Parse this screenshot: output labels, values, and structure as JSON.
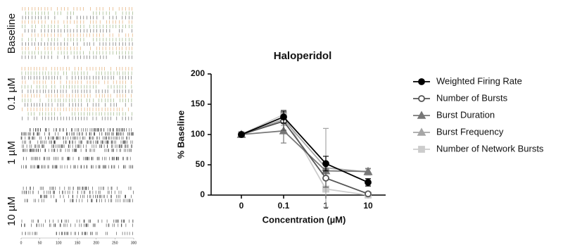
{
  "chart_data": [
    {
      "type": "raster",
      "panels": [
        "Baseline",
        "0.1 µM",
        "1 µM",
        "10 µM"
      ],
      "xlim": [
        0,
        300
      ],
      "xticks": [
        0,
        50,
        100,
        150,
        200,
        250,
        300
      ]
    },
    {
      "type": "line",
      "title": "Haloperidol",
      "x_label": "Concentration (µM)",
      "y_label": "% Baseline",
      "categories": [
        "0",
        "0.1",
        "1",
        "10"
      ],
      "ylim": [
        0,
        200
      ],
      "yticks": [
        0,
        50,
        100,
        150,
        200
      ],
      "series": [
        {
          "name": "Weighted Firing Rate",
          "color": "#000000",
          "marker": "circle",
          "filled": true,
          "values": [
            100,
            129,
            52,
            21
          ],
          "errors": [
            0,
            10,
            12,
            6
          ]
        },
        {
          "name": "Number of Bursts",
          "color": "#555555",
          "marker": "circle",
          "filled": false,
          "values": [
            100,
            122,
            28,
            2
          ],
          "errors": [
            0,
            15,
            15,
            2
          ]
        },
        {
          "name": "Burst Duration",
          "color": "#777777",
          "marker": "triangle",
          "filled": true,
          "values": [
            100,
            106,
            40,
            39
          ],
          "errors": [
            0,
            20,
            10,
            5
          ]
        },
        {
          "name": "Burst Frequency",
          "color": "#a6a6a6",
          "marker": "triangle",
          "filled": true,
          "values": [
            100,
            125,
            45,
            38
          ],
          "errors": [
            0,
            10,
            65,
            5
          ]
        },
        {
          "name": "Number of Network Bursts",
          "color": "#cccccc",
          "marker": "square",
          "filled": true,
          "values": [
            100,
            133,
            10,
            0
          ],
          "errors": [
            0,
            8,
            5,
            1
          ]
        }
      ]
    }
  ]
}
